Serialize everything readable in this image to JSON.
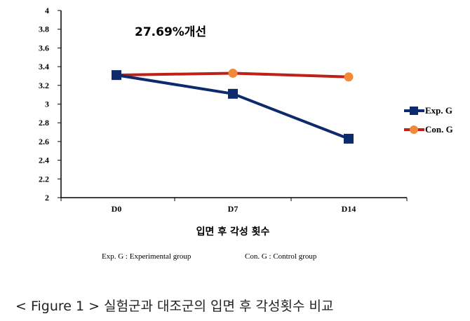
{
  "chart_data": {
    "type": "line",
    "categories": [
      "D0",
      "D7",
      "D14"
    ],
    "series": [
      {
        "name": "Exp. G",
        "values": [
          3.31,
          3.11,
          2.63
        ],
        "color": "#0d2a6e",
        "marker": "square"
      },
      {
        "name": "Con. G",
        "values": [
          3.31,
          3.33,
          3.29
        ],
        "color": "#c0201a",
        "marker": "circle",
        "marker_color": "#f2893a"
      }
    ],
    "ylim": [
      2,
      4
    ],
    "yticks": [
      "2",
      "2.2",
      "2.4",
      "2.6",
      "2.8",
      "3",
      "3.2",
      "3.4",
      "3.6",
      "3.8",
      "4"
    ],
    "xlabel": "입면 후 각성 횟수",
    "annotation": "27.69%개선",
    "legend_position": "right",
    "grid": false
  },
  "notes": {
    "exp": "Exp. G : Experimental group",
    "con": "Con. G : Control group"
  },
  "caption": "< Figure 1 > 실험군과 대조군의 입면 후 각성횟수 비교"
}
